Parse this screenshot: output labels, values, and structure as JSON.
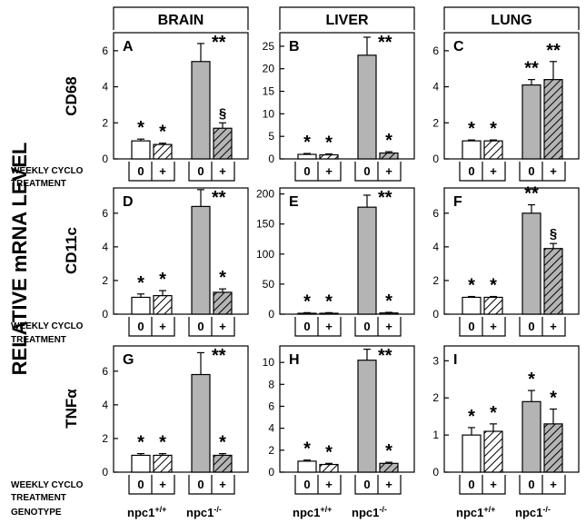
{
  "figure": {
    "y_label": "RELATIVE mRNA LEVEL",
    "columns": [
      "BRAIN",
      "LIVER",
      "LUNG"
    ],
    "rows": [
      "CD68",
      "CD11c",
      "TNFα"
    ],
    "treatment_label_1": "WEEKLY CYCLO",
    "treatment_label_2": "TREATMENT",
    "treatment_ticks": [
      "0",
      "+"
    ],
    "genotype_label": "GENOTYPE",
    "genotypes": [
      {
        "base": "npc1",
        "sup": "+/+"
      },
      {
        "base": "npc1",
        "sup": "-/-"
      }
    ],
    "colors": {
      "wt": "#ffffff",
      "mut": "#b4b4b4",
      "axis": "#000000"
    }
  },
  "chart_data": [
    {
      "panel": "A",
      "type": "bar",
      "ylim": [
        0,
        7
      ],
      "yticks": [
        0,
        2,
        4,
        6
      ],
      "categories": [
        "npc1+/+ 0",
        "npc1+/+ +",
        "npc1-/- 0",
        "npc1-/- +"
      ],
      "values": [
        1.0,
        0.8,
        5.4,
        1.7
      ],
      "errors": [
        0.1,
        0.07,
        1.0,
        0.3
      ],
      "sig": [
        "*",
        "*",
        "**",
        "§"
      ]
    },
    {
      "panel": "B",
      "type": "bar",
      "ylim": [
        0,
        28
      ],
      "yticks": [
        0,
        5,
        10,
        15,
        20,
        25
      ],
      "categories": [
        "npc1+/+ 0",
        "npc1+/+ +",
        "npc1-/- 0",
        "npc1-/- +"
      ],
      "values": [
        1.0,
        0.9,
        23.0,
        1.3
      ],
      "errors": [
        0.2,
        0.2,
        4.0,
        0.3
      ],
      "sig": [
        "*",
        "*",
        "**",
        "*"
      ]
    },
    {
      "panel": "C",
      "type": "bar",
      "ylim": [
        0,
        7
      ],
      "yticks": [
        0,
        2,
        4,
        6
      ],
      "categories": [
        "npc1+/+ 0",
        "npc1+/+ +",
        "npc1-/- 0",
        "npc1-/- +"
      ],
      "values": [
        1.0,
        1.0,
        4.1,
        4.4
      ],
      "errors": [
        0.05,
        0.05,
        0.3,
        1.0
      ],
      "sig": [
        "*",
        "*",
        "**",
        "**"
      ]
    },
    {
      "panel": "D",
      "type": "bar",
      "ylim": [
        0,
        7.5
      ],
      "yticks": [
        0,
        2,
        4,
        6
      ],
      "categories": [
        "npc1+/+ 0",
        "npc1+/+ +",
        "npc1-/- 0",
        "npc1-/- +"
      ],
      "values": [
        1.0,
        1.1,
        6.4,
        1.3
      ],
      "errors": [
        0.2,
        0.3,
        1.0,
        0.2
      ],
      "sig": [
        "*",
        "*",
        "**",
        "*"
      ]
    },
    {
      "panel": "E",
      "type": "bar",
      "ylim": [
        0,
        210
      ],
      "yticks": [
        0,
        50,
        100,
        150,
        200
      ],
      "categories": [
        "npc1+/+ 0",
        "npc1+/+ +",
        "npc1-/- 0",
        "npc1-/- +"
      ],
      "values": [
        1.5,
        1.5,
        178,
        2.0
      ],
      "errors": [
        1.0,
        1.0,
        20,
        1.0
      ],
      "sig": [
        "*",
        "*",
        "**",
        "*"
      ]
    },
    {
      "panel": "F",
      "type": "bar",
      "ylim": [
        0,
        7.5
      ],
      "yticks": [
        0,
        2,
        4,
        6
      ],
      "categories": [
        "npc1+/+ 0",
        "npc1+/+ +",
        "npc1-/- 0",
        "npc1-/- +"
      ],
      "values": [
        1.0,
        1.0,
        6.0,
        3.9
      ],
      "errors": [
        0.05,
        0.05,
        0.5,
        0.3
      ],
      "sig": [
        "*",
        "*",
        "**",
        "§"
      ]
    },
    {
      "panel": "G",
      "type": "bar",
      "ylim": [
        0,
        7.5
      ],
      "yticks": [
        0,
        2,
        4,
        6
      ],
      "categories": [
        "npc1+/+ 0",
        "npc1+/+ +",
        "npc1-/- 0",
        "npc1-/- +"
      ],
      "values": [
        1.0,
        1.0,
        5.8,
        1.0
      ],
      "errors": [
        0.1,
        0.1,
        1.3,
        0.1
      ],
      "sig": [
        "*",
        "*",
        "**",
        "*"
      ]
    },
    {
      "panel": "H",
      "type": "bar",
      "ylim": [
        0,
        11.5
      ],
      "yticks": [
        0,
        2,
        4,
        6,
        8,
        10
      ],
      "categories": [
        "npc1+/+ 0",
        "npc1+/+ +",
        "npc1-/- 0",
        "npc1-/- +"
      ],
      "values": [
        1.0,
        0.7,
        10.2,
        0.8
      ],
      "errors": [
        0.1,
        0.1,
        1.0,
        0.1
      ],
      "sig": [
        "*",
        "*",
        "**",
        "*"
      ]
    },
    {
      "panel": "I",
      "type": "bar",
      "ylim": [
        0,
        3.4
      ],
      "yticks": [
        0,
        1,
        2,
        3
      ],
      "categories": [
        "npc1+/+ 0",
        "npc1+/+ +",
        "npc1-/- 0",
        "npc1-/- +"
      ],
      "values": [
        1.0,
        1.1,
        1.9,
        1.3
      ],
      "errors": [
        0.2,
        0.2,
        0.3,
        0.4
      ],
      "sig": [
        "*",
        "*",
        "*",
        "*"
      ]
    }
  ]
}
